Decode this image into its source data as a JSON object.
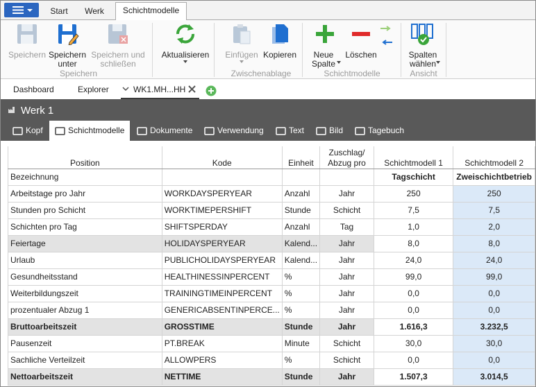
{
  "app_tabs": [
    "Start",
    "Werk",
    "Schichtmodelle"
  ],
  "ribbon": {
    "groups": [
      {
        "label": "Speichern",
        "buttons": [
          {
            "label": "Speichern",
            "enabled": false
          },
          {
            "label": "Speichern\nunter",
            "enabled": true
          },
          {
            "label": "Speichern und\nschließen",
            "enabled": false
          }
        ]
      },
      {
        "buttons": [
          {
            "label": "Aktualisieren",
            "enabled": true
          }
        ]
      },
      {
        "label": "Zwischenablage",
        "buttons": [
          {
            "label": "Einfügen",
            "enabled": false
          },
          {
            "label": "Kopieren",
            "enabled": true
          }
        ]
      },
      {
        "label": "Schichtmodelle",
        "buttons": [
          {
            "label": "Neue\nSpalte",
            "enabled": true
          },
          {
            "label": "Löschen",
            "enabled": true
          }
        ]
      },
      {
        "label": "Ansicht",
        "buttons": [
          {
            "label": "Spalten\nwählen",
            "enabled": true
          }
        ]
      }
    ]
  },
  "doc_tabs": [
    "Dashboard",
    "Explorer",
    "WK1.MH...HH"
  ],
  "header": {
    "title": "Werk 1"
  },
  "sub_tabs": [
    "Kopf",
    "Schichtmodelle",
    "Dokumente",
    "Verwendung",
    "Text",
    "Bild",
    "Tagebuch"
  ],
  "table": {
    "columns": [
      "Position",
      "Kode",
      "Einheit",
      "Zuschlag/\nAbzug pro",
      "Schichtmodell 1",
      "Schichtmodell 2"
    ],
    "rows": [
      {
        "cells": [
          "Bezeichnung",
          null,
          null,
          null,
          "Tagschicht",
          "Zweischichtbetrieb"
        ],
        "shaded": false,
        "bold": false
      },
      {
        "cells": [
          "Arbeitstage pro Jahr",
          "WORKDAYSPERYEAR",
          "Anzahl",
          "Jahr",
          "250",
          "250"
        ],
        "shaded": false,
        "bold": false
      },
      {
        "cells": [
          "Stunden pro Schicht",
          "WORKTIMEPERSHIFT",
          "Stunde",
          "Schicht",
          "7,5",
          "7,5"
        ],
        "shaded": false,
        "bold": false
      },
      {
        "cells": [
          "Schichten pro Tag",
          "SHIFTSPERDAY",
          "Anzahl",
          "Tag",
          "1,0",
          "2,0"
        ],
        "shaded": false,
        "bold": false
      },
      {
        "cells": [
          "Feiertage",
          "HOLIDAYSPERYEAR",
          "Kalend...",
          "Jahr",
          "8,0",
          "8,0"
        ],
        "shaded": true,
        "bold": false
      },
      {
        "cells": [
          "Urlaub",
          "PUBLICHOLIDAYSPERYEAR",
          "Kalend...",
          "Jahr",
          "24,0",
          "24,0"
        ],
        "shaded": false,
        "bold": false
      },
      {
        "cells": [
          "Gesundheitsstand",
          "HEALTHINESSINPERCENT",
          "%",
          "Jahr",
          "99,0",
          "99,0"
        ],
        "shaded": false,
        "bold": false
      },
      {
        "cells": [
          "Weiterbildungszeit",
          "TRAININGTIMEINPERCENT",
          "%",
          "Jahr",
          "0,0",
          "0,0"
        ],
        "shaded": false,
        "bold": false
      },
      {
        "cells": [
          "prozentualer Abzug 1",
          "GENERICABSENTINPERCE...",
          "%",
          "Jahr",
          "0,0",
          "0,0"
        ],
        "shaded": false,
        "bold": false
      },
      {
        "cells": [
          "Bruttoarbeitszeit",
          "GROSSTIME",
          "Stunde",
          "Jahr",
          "1.616,3",
          "3.232,5"
        ],
        "shaded": true,
        "bold": true
      },
      {
        "cells": [
          "Pausenzeit",
          "PT.BREAK",
          "Minute",
          "Schicht",
          "30,0",
          "30,0"
        ],
        "shaded": false,
        "bold": false
      },
      {
        "cells": [
          "Sachliche Verteilzeit",
          "ALLOWPERS",
          "%",
          "Schicht",
          "0,0",
          "0,0"
        ],
        "shaded": false,
        "bold": false
      },
      {
        "cells": [
          "Nettoarbeitszeit",
          "NETTIME",
          "Stunde",
          "Jahr",
          "1.507,3",
          "3.014,5"
        ],
        "shaded": true,
        "bold": true
      }
    ]
  }
}
